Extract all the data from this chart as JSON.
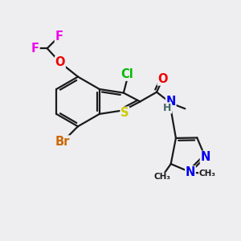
{
  "bg_color": "#eeedf0",
  "bond_color": "#1a1a1a",
  "bond_width": 1.6,
  "atom_colors": {
    "F": "#ee00ee",
    "O": "#ee0000",
    "Cl": "#00bb00",
    "S": "#cccc00",
    "N": "#0000ee",
    "Br": "#cc6600",
    "H": "#446666",
    "C": "#1a1a1a"
  },
  "font_size": 10.5
}
